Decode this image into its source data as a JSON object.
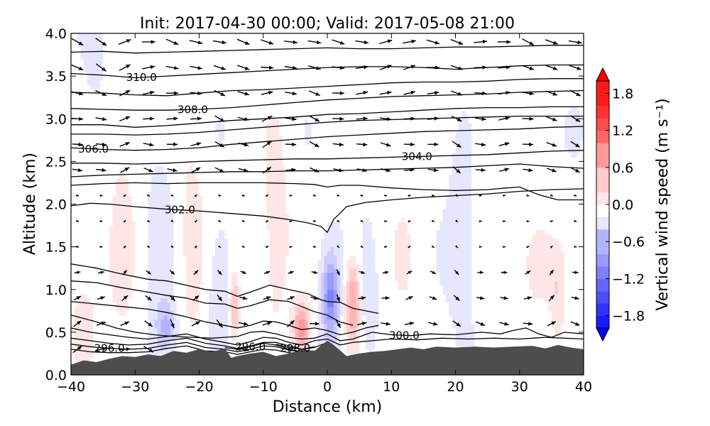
{
  "chart_data": {
    "type": "heatmap",
    "title": "Init: 2017-04-30 00:00; Valid: 2017-05-08 21:00",
    "xlabel": "Distance (km)",
    "ylabel": "Altitude (km)",
    "xlim": [
      -40,
      40
    ],
    "ylim": [
      0.0,
      4.0
    ],
    "x_ticks": [
      -40,
      -30,
      -20,
      -10,
      0,
      10,
      20,
      30,
      40
    ],
    "x_tick_labels": [
      "−40",
      "−30",
      "−20",
      "−10",
      "0",
      "10",
      "20",
      "30",
      "40"
    ],
    "y_ticks": [
      0.0,
      0.5,
      1.0,
      1.5,
      2.0,
      2.5,
      3.0,
      3.5,
      4.0
    ],
    "y_tick_labels": [
      "0.0",
      "0.5",
      "1.0",
      "1.5",
      "2.0",
      "2.5",
      "3.0",
      "3.5",
      "4.0"
    ],
    "colorbar": {
      "label": "Vertical wind speed (m s⁻¹)",
      "range": [
        -2.0,
        2.0
      ],
      "ticks": [
        1.8,
        1.2,
        0.6,
        0.0,
        -0.6,
        -1.2,
        -1.8
      ],
      "tick_labels": [
        "1.8",
        "1.2",
        "0.6",
        "0.0",
        "−0.6",
        "−1.2",
        "−1.8"
      ],
      "colormap": "bwr",
      "colors": {
        "min": "#0000ff",
        "mid": "#ffffff",
        "max": "#ff0000"
      }
    },
    "terrain": {
      "color": "#4d4d4d",
      "x": [
        -40,
        -38,
        -36,
        -34,
        -32,
        -30,
        -28,
        -26,
        -24,
        -22,
        -20,
        -18,
        -16,
        -15,
        -14,
        -12,
        -10,
        -8,
        -6,
        -4,
        -2,
        0,
        1,
        3,
        5,
        7,
        9,
        11,
        13,
        15,
        17,
        20,
        23,
        26,
        29,
        32,
        34,
        36,
        38,
        40
      ],
      "y": [
        0.12,
        0.17,
        0.15,
        0.19,
        0.22,
        0.21,
        0.24,
        0.22,
        0.28,
        0.26,
        0.3,
        0.27,
        0.31,
        0.2,
        0.22,
        0.25,
        0.27,
        0.22,
        0.25,
        0.3,
        0.28,
        0.4,
        0.35,
        0.22,
        0.25,
        0.27,
        0.28,
        0.3,
        0.32,
        0.3,
        0.33,
        0.32,
        0.33,
        0.32,
        0.33,
        0.34,
        0.31,
        0.35,
        0.32,
        0.3
      ]
    },
    "vertical_wind_regions": [
      {
        "x": -38,
        "z": 0.7,
        "sx": 3,
        "sz": 0.9,
        "w": 0.2
      },
      {
        "x": -32,
        "z": 1.6,
        "sx": 2.5,
        "sz": 1.6,
        "w": 0.22
      },
      {
        "x": -26,
        "z": 1.2,
        "sx": 2,
        "sz": 1.3,
        "w": -0.2
      },
      {
        "x": -21,
        "z": 1.5,
        "sx": 2.5,
        "sz": 1.4,
        "w": 0.25
      },
      {
        "x": -25,
        "z": 0.55,
        "sx": 1.5,
        "sz": 0.25,
        "w": -0.45
      },
      {
        "x": -14.5,
        "z": 0.8,
        "sx": 0.8,
        "sz": 0.4,
        "w": 0.6
      },
      {
        "x": -17,
        "z": 1.0,
        "sx": 2,
        "sz": 0.8,
        "w": -0.2
      },
      {
        "x": -8,
        "z": 1.8,
        "sx": 2.5,
        "sz": 1.6,
        "w": 0.25
      },
      {
        "x": -4,
        "z": 0.55,
        "sx": 1.3,
        "sz": 0.3,
        "w": 0.9
      },
      {
        "x": 0.5,
        "z": 0.9,
        "sx": 1.3,
        "sz": 0.5,
        "w": -0.9
      },
      {
        "x": 4,
        "z": 0.85,
        "sx": 1.2,
        "sz": 0.5,
        "w": 0.8
      },
      {
        "x": 6.5,
        "z": 1.0,
        "sx": 1.2,
        "sz": 0.6,
        "w": -0.25
      },
      {
        "x": 12,
        "z": 1.4,
        "sx": 3,
        "sz": 1.4,
        "w": 0.15
      },
      {
        "x": 21,
        "z": 1.7,
        "sx": 2,
        "sz": 1.4,
        "w": -0.15
      },
      {
        "x": 26,
        "z": 2.6,
        "sx": 3,
        "sz": 1.5,
        "w": 0.15
      },
      {
        "x": 33,
        "z": 1.3,
        "sx": 2.5,
        "sz": 0.5,
        "w": 0.35
      },
      {
        "x": 36,
        "z": 0.9,
        "sx": 1.2,
        "sz": 0.6,
        "w": 0.3
      },
      {
        "x": -30,
        "z": 3.4,
        "sx": 5,
        "sz": 0.7,
        "w": 0.12
      },
      {
        "x": 10,
        "z": 3.5,
        "sx": 8,
        "sz": 0.6,
        "w": 0.12
      },
      {
        "x": -36,
        "z": 3.6,
        "sx": 2,
        "sz": 0.5,
        "w": -0.12
      }
    ],
    "potential_temperature_contours": [
      {
        "x": [
          -40,
          -35,
          -30,
          -25,
          -20,
          -15,
          -10,
          -5,
          0,
          5,
          10,
          15,
          20,
          25,
          30,
          35,
          40
        ],
        "y": [
          3.78,
          3.79,
          3.77,
          3.78,
          3.79,
          3.8,
          3.81,
          3.82,
          3.83,
          3.82,
          3.82,
          3.83,
          3.84,
          3.84,
          3.85,
          3.86,
          3.86
        ]
      },
      {
        "x": [
          -40,
          -35,
          -30,
          -25,
          -20,
          -15,
          -10,
          -5,
          0,
          5,
          10,
          15,
          20,
          25,
          30,
          35,
          40
        ],
        "y": [
          3.53,
          3.51,
          3.48,
          3.5,
          3.52,
          3.54,
          3.56,
          3.58,
          3.6,
          3.61,
          3.61,
          3.6,
          3.58,
          3.6,
          3.62,
          3.63,
          3.63
        ],
        "label": "310.0",
        "label_x": -29
      },
      {
        "x": [
          -40,
          -35,
          -30,
          -25,
          -20,
          -15,
          -10,
          -5,
          0,
          5,
          10,
          15,
          20,
          25,
          30,
          35,
          40
        ],
        "y": [
          3.31,
          3.3,
          3.28,
          3.27,
          3.3,
          3.33,
          3.34,
          3.36,
          3.38,
          3.4,
          3.42,
          3.43,
          3.43,
          3.44,
          3.46,
          3.47,
          3.47
        ]
      },
      {
        "x": [
          -40,
          -35,
          -30,
          -25,
          -20,
          -15,
          -10,
          -5,
          0,
          5,
          10,
          15,
          20,
          25,
          30,
          35,
          40
        ],
        "y": [
          3.12,
          3.11,
          3.1,
          3.1,
          3.11,
          3.13,
          3.16,
          3.19,
          3.22,
          3.24,
          3.26,
          3.27,
          3.28,
          3.29,
          3.31,
          3.32,
          3.33
        ],
        "label": "308.0",
        "label_x": -21
      },
      {
        "x": [
          -40,
          -35,
          -30,
          -25,
          -20,
          -15,
          -10,
          -5,
          0,
          5,
          10,
          15,
          20,
          25,
          30,
          35,
          40
        ],
        "y": [
          2.93,
          2.93,
          2.9,
          2.92,
          2.95,
          2.98,
          3.0,
          3.02,
          3.05,
          3.06,
          3.08,
          3.1,
          3.12,
          3.13,
          3.13,
          3.14,
          3.14
        ]
      },
      {
        "x": [
          -40,
          -35,
          -30,
          -25,
          -20,
          -15,
          -10,
          -5,
          0,
          5,
          10,
          15,
          20,
          25,
          30,
          35,
          40
        ],
        "y": [
          2.82,
          2.82,
          2.81,
          2.82,
          2.84,
          2.87,
          2.9,
          2.93,
          2.96,
          2.98,
          2.99,
          3.0,
          3.01,
          3.02,
          3.03,
          3.03,
          3.03
        ]
      },
      {
        "x": [
          -40,
          -35,
          -30,
          -25,
          -20,
          -15,
          -10,
          -5,
          0,
          5,
          10,
          15,
          20,
          25,
          30,
          35,
          40
        ],
        "y": [
          2.66,
          2.64,
          2.63,
          2.64,
          2.66,
          2.7,
          2.73,
          2.76,
          2.79,
          2.81,
          2.83,
          2.85,
          2.86,
          2.87,
          2.88,
          2.9,
          2.91
        ],
        "label": "306.0",
        "label_x": -36.5
      },
      {
        "x": [
          -40,
          -35,
          -30,
          -25,
          -20,
          -15,
          -10,
          -5,
          0,
          5,
          10,
          15,
          20,
          25,
          30,
          35,
          40
        ],
        "y": [
          2.48,
          2.48,
          2.47,
          2.48,
          2.5,
          2.51,
          2.52,
          2.53,
          2.53,
          2.54,
          2.55,
          2.56,
          2.57,
          2.58,
          2.6,
          2.62,
          2.63
        ],
        "label": "304.0",
        "label_x": 14
      },
      {
        "x": [
          -40,
          -35,
          -30,
          -25,
          -20,
          -15,
          -10,
          -5,
          0,
          5,
          10,
          15,
          20,
          25,
          30,
          35,
          40
        ],
        "y": [
          2.32,
          2.34,
          2.35,
          2.36,
          2.37,
          2.38,
          2.38,
          2.39,
          2.39,
          2.4,
          2.41,
          2.42,
          2.43,
          2.45,
          2.47,
          2.44,
          2.42
        ]
      },
      {
        "x": [
          -40,
          -35,
          -30,
          -25,
          -20,
          -15,
          -10,
          -5,
          -2,
          0,
          2,
          5,
          10,
          15,
          20,
          25,
          28,
          30,
          33,
          36,
          40
        ],
        "y": [
          2.22,
          2.24,
          2.25,
          2.24,
          2.25,
          2.25,
          2.25,
          2.24,
          2.23,
          2.2,
          2.22,
          2.22,
          2.19,
          2.17,
          2.16,
          2.17,
          2.19,
          2.2,
          2.11,
          2.05,
          2.05
        ]
      },
      {
        "x": [
          -40,
          -37,
          -34,
          -30,
          -25,
          -20,
          -15,
          -10,
          -6,
          -3,
          -1,
          0,
          1,
          3,
          6,
          10,
          15,
          20,
          25,
          30,
          35,
          40
        ],
        "y": [
          1.98,
          2.01,
          2.0,
          1.97,
          1.94,
          1.92,
          1.89,
          1.86,
          1.82,
          1.78,
          1.74,
          1.67,
          1.82,
          1.97,
          2.02,
          2.05,
          2.08,
          2.1,
          2.12,
          2.15,
          2.17,
          2.18
        ],
        "label": "302.0",
        "label_x": -23
      },
      {
        "x": [
          -40,
          -36,
          -32,
          -28,
          -25,
          -22,
          -19,
          -16,
          -14,
          -12,
          -9,
          -6,
          -3,
          -1,
          0,
          2,
          4,
          6,
          8
        ],
        "y": [
          1.3,
          1.25,
          1.18,
          1.12,
          1.1,
          1.05,
          1.0,
          0.98,
          0.92,
          0.97,
          1.05,
          1.0,
          0.95,
          0.88,
          0.86,
          0.85,
          0.78,
          0.75,
          0.72
        ]
      },
      {
        "x": [
          -40,
          -36,
          -32,
          -28,
          -25,
          -22,
          -19,
          -16,
          -14,
          -12,
          -9,
          -6,
          -4,
          -2,
          0,
          2,
          4
        ],
        "y": [
          1.1,
          1.08,
          1.02,
          0.97,
          0.93,
          0.9,
          0.84,
          0.83,
          0.78,
          0.81,
          0.88,
          0.86,
          0.8,
          0.74,
          0.7,
          0.62,
          0.58
        ]
      },
      {
        "x": [
          -40,
          -36,
          -32,
          -28,
          -25,
          -22,
          -19,
          -16,
          -14,
          -12,
          -10,
          -8,
          -6,
          -4,
          -2,
          0,
          2,
          4,
          6,
          8
        ],
        "y": [
          0.86,
          0.83,
          0.8,
          0.77,
          0.73,
          0.68,
          0.62,
          0.58,
          0.55,
          0.58,
          0.63,
          0.62,
          0.58,
          0.53,
          0.55,
          0.52,
          0.47,
          0.5,
          0.55,
          0.58
        ]
      },
      {
        "x": [
          -40,
          -36,
          -33,
          -30,
          -27,
          -24,
          -21,
          -18,
          -16,
          -14,
          -12,
          -10,
          -8,
          -6,
          -4,
          -2,
          0,
          2,
          4,
          7,
          10,
          13,
          16,
          20,
          24,
          27,
          29,
          31,
          33,
          35,
          37,
          40
        ],
        "y": [
          0.7,
          0.62,
          0.55,
          0.5,
          0.47,
          0.45,
          0.44,
          0.43,
          0.44,
          0.45,
          0.5,
          0.51,
          0.48,
          0.44,
          0.42,
          0.43,
          0.48,
          0.4,
          0.42,
          0.5,
          0.47,
          0.46,
          0.48,
          0.47,
          0.5,
          0.48,
          0.52,
          0.55,
          0.48,
          0.44,
          0.5,
          0.48
        ],
        "label": "300.0",
        "label_x": 12
      },
      {
        "x": [
          -40,
          -37,
          -34,
          -31,
          -28,
          -25,
          -22,
          -19,
          -16,
          -14,
          -12,
          -10,
          -8,
          -6,
          -4,
          -2,
          0,
          2,
          4,
          7,
          10,
          14,
          18,
          22,
          26,
          30,
          34,
          37,
          40
        ],
        "y": [
          0.55,
          0.5,
          0.47,
          0.44,
          0.42,
          0.45,
          0.48,
          0.42,
          0.38,
          0.35,
          0.39,
          0.44,
          0.43,
          0.38,
          0.35,
          0.4,
          0.42,
          0.35,
          0.38,
          0.4,
          0.42,
          0.41,
          0.43,
          0.42,
          0.43,
          0.42,
          0.44,
          0.43,
          0.42
        ]
      },
      {
        "x": [
          -40,
          -37,
          -34,
          -31,
          -28,
          -25,
          -22,
          -19,
          -16,
          -14,
          -12,
          -10,
          -8,
          -6,
          -4,
          -2
        ],
        "y": [
          0.43,
          0.4,
          0.37,
          0.35,
          0.36,
          0.4,
          0.43,
          0.37,
          0.34,
          0.31,
          0.34,
          0.38,
          0.38,
          0.34,
          0.3,
          0.33
        ]
      },
      {
        "x": [
          -40,
          -37,
          -34,
          -31,
          -28,
          -25,
          -22,
          -19,
          -16,
          -14,
          -12,
          -10,
          -8,
          -6,
          -4
        ],
        "y": [
          0.36,
          0.33,
          0.31,
          0.3,
          0.31,
          0.35,
          0.38,
          0.32,
          0.3,
          0.27,
          0.3,
          0.34,
          0.33,
          0.29,
          0.27
        ],
        "label": "296.0",
        "label_x": -34
      },
      {
        "x": [
          -40,
          -37,
          -34,
          -31,
          -28,
          -25,
          -22,
          -19,
          -16,
          -14,
          -12,
          -10,
          -8,
          -6,
          -5
        ],
        "y": [
          0.3,
          0.27,
          0.26,
          0.26,
          0.27,
          0.31,
          0.34,
          0.28,
          0.27,
          0.24,
          0.27,
          0.3,
          0.29,
          0.26,
          0.25
        ]
      },
      {
        "x": [
          -16,
          -14,
          -12,
          -10,
          -8,
          -6,
          -4,
          -2
        ],
        "y": [
          0.32,
          0.3,
          0.33,
          0.37,
          0.35,
          0.3,
          0.27,
          0.28
        ],
        "label": "296.0",
        "label_x": -12
      },
      {
        "x": [
          -8,
          -6,
          -4,
          -2,
          0
        ],
        "y": [
          0.36,
          0.32,
          0.3,
          0.32,
          0.38
        ],
        "label": "298.0",
        "label_x": -5
      }
    ]
  }
}
